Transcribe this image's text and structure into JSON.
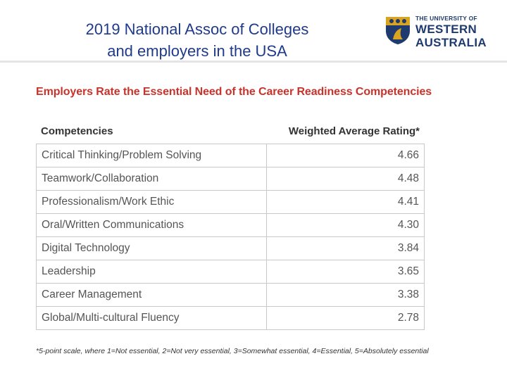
{
  "slide": {
    "title_line1": "2019 National Assoc of Colleges",
    "title_line2": "and employers in the USA"
  },
  "logo": {
    "line1": "THE UNIVERSITY OF",
    "line2": "WESTERN",
    "line3": "AUSTRALIA"
  },
  "colors": {
    "title": "#1f3a8a",
    "heading": "#c8332b",
    "logo": "#1f3a6e",
    "crest_gold": "#d9a520"
  },
  "chart_data": {
    "type": "table",
    "title": "Employers Rate the Essential Need of the Career Readiness Competencies",
    "columns": [
      "Competencies",
      "Weighted Average Rating*"
    ],
    "rows": [
      {
        "competency": "Critical Thinking/Problem Solving",
        "rating": "4.66"
      },
      {
        "competency": "Teamwork/Collaboration",
        "rating": "4.48"
      },
      {
        "competency": "Professionalism/Work Ethic",
        "rating": "4.41"
      },
      {
        "competency": "Oral/Written Communications",
        "rating": "4.30"
      },
      {
        "competency": "Digital Technology",
        "rating": "3.84"
      },
      {
        "competency": "Leadership",
        "rating": "3.65"
      },
      {
        "competency": "Career Management",
        "rating": "3.38"
      },
      {
        "competency": "Global/Multi-cultural Fluency",
        "rating": "2.78"
      }
    ],
    "footnote": "*5-point scale, where 1=Not essential, 2=Not very essential, 3=Somewhat essential, 4=Essential, 5=Absolutely essential"
  }
}
